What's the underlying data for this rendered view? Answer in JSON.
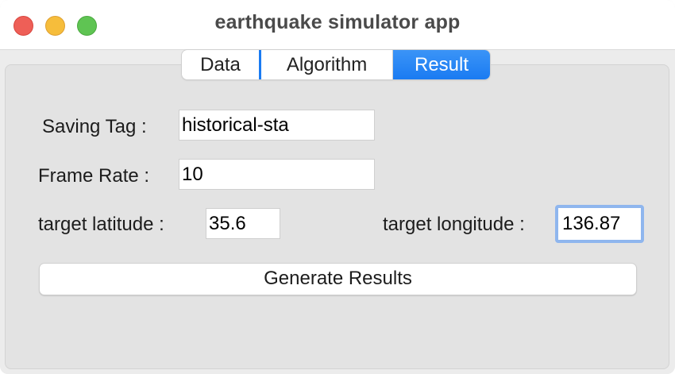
{
  "window": {
    "title": "earthquake simulator app"
  },
  "tabs": [
    {
      "label": "Data",
      "selected": false
    },
    {
      "label": "Algorithm",
      "selected": false
    },
    {
      "label": "Result",
      "selected": true
    }
  ],
  "form": {
    "saving_tag": {
      "label": "Saving Tag :",
      "value": "historical-sta"
    },
    "frame_rate": {
      "label": "Frame Rate :",
      "value": "10"
    },
    "target_latitude": {
      "label": "target latitude :",
      "value": "35.6"
    },
    "target_longitude": {
      "label": "target longitude :",
      "value": "136.87"
    }
  },
  "actions": {
    "generate_label": "Generate Results"
  },
  "colors": {
    "accent": "#1a7bf2",
    "close": "#ee5f57",
    "minimize": "#f6bd3b",
    "maximize": "#5fc453",
    "focus_ring": "#8fb6ee"
  }
}
